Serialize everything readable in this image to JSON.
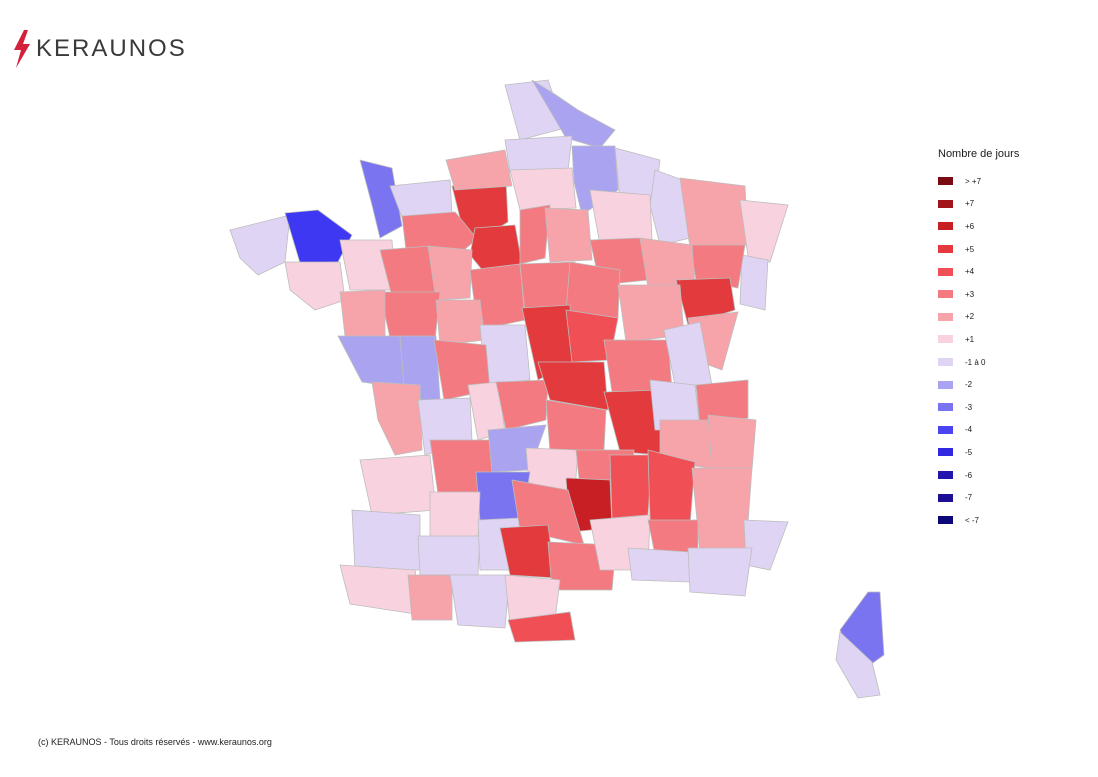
{
  "brand": {
    "name": "KERAUNOS",
    "bolt_color": "#d3213a"
  },
  "legend": {
    "title": "Nombre de jours",
    "items": [
      {
        "label": "> +7",
        "color": "#7a0b12"
      },
      {
        "label": "+7",
        "color": "#a31418"
      },
      {
        "label": "+6",
        "color": "#c71f24"
      },
      {
        "label": "+5",
        "color": "#e23a3d"
      },
      {
        "label": "+4",
        "color": "#f05055"
      },
      {
        "label": "+3",
        "color": "#f27a80"
      },
      {
        "label": "+2",
        "color": "#f6a3aa"
      },
      {
        "label": "+1",
        "color": "#f8d3df"
      },
      {
        "label": "-1 à 0",
        "color": "#e0d4f5"
      },
      {
        "label": "-2",
        "color": "#aaa4f0"
      },
      {
        "label": "-3",
        "color": "#7b74f0"
      },
      {
        "label": "-4",
        "color": "#4b42f2"
      },
      {
        "label": "-5",
        "color": "#3228e0"
      },
      {
        "label": "-6",
        "color": "#2116b0"
      },
      {
        "label": "-7",
        "color": "#1a0f95"
      },
      {
        "label": "< -7",
        "color": "#0d0878"
      }
    ]
  },
  "footer": "(c) KERAUNOS - Tous droits réservés - www.keraunos.org"
}
